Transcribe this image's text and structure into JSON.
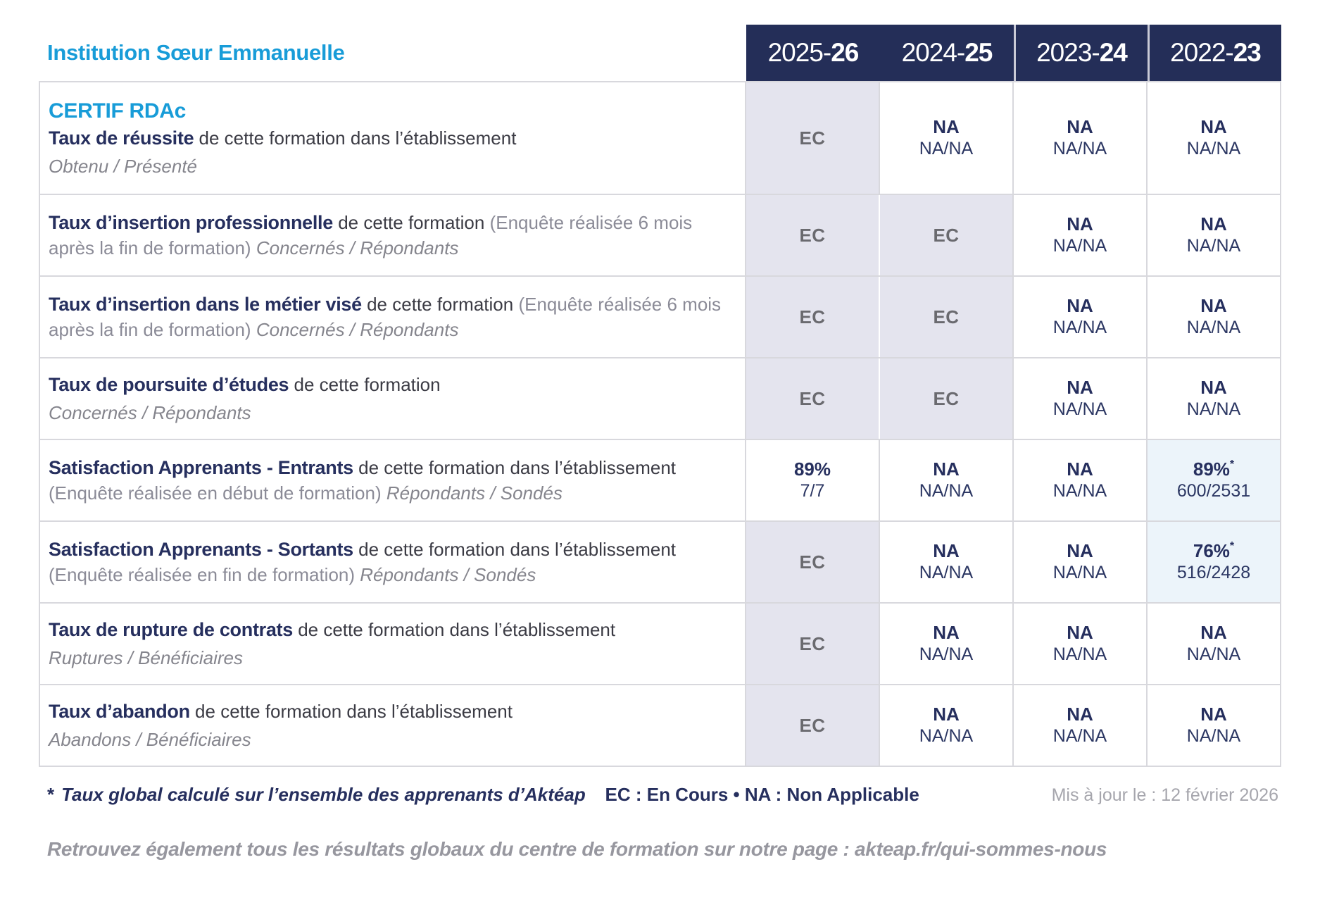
{
  "header": {
    "institution": "Institution Sœur Emmanuelle",
    "program": "CERTIF RDAc"
  },
  "columns": [
    {
      "pre": "2025-",
      "bold": "26"
    },
    {
      "pre": "2024-",
      "bold": "25"
    },
    {
      "pre": "2023-",
      "bold": "24"
    },
    {
      "pre": "2022-",
      "bold": "23"
    }
  ],
  "rows": [
    {
      "title": "Taux de réussite",
      "desc": "de cette formation dans l’établissement",
      "paren": "",
      "subtitle": "Obtenu / Présenté",
      "cells": [
        {
          "bg": "lav",
          "main": "EC"
        },
        {
          "bg": "white",
          "main": "NA",
          "sub": "NA/NA"
        },
        {
          "bg": "white",
          "main": "NA",
          "sub": "NA/NA"
        },
        {
          "bg": "white",
          "main": "NA",
          "sub": "NA/NA"
        }
      ]
    },
    {
      "title": "Taux d’insertion professionnelle",
      "desc": "de cette formation",
      "paren": "(Enquête réalisée 6 mois après la fin de formation)",
      "subtitle": "Concernés / Répondants",
      "cells": [
        {
          "bg": "lav",
          "main": "EC"
        },
        {
          "bg": "lav",
          "main": "EC"
        },
        {
          "bg": "white",
          "main": "NA",
          "sub": "NA/NA"
        },
        {
          "bg": "white",
          "main": "NA",
          "sub": "NA/NA"
        }
      ]
    },
    {
      "title": "Taux d’insertion dans le métier visé",
      "desc": "de cette formation",
      "paren": "(Enquête réalisée 6 mois après la fin de formation)",
      "subtitle": "Concernés / Répondants",
      "cells": [
        {
          "bg": "lav",
          "main": "EC"
        },
        {
          "bg": "lav",
          "main": "EC"
        },
        {
          "bg": "white",
          "main": "NA",
          "sub": "NA/NA"
        },
        {
          "bg": "white",
          "main": "NA",
          "sub": "NA/NA"
        }
      ]
    },
    {
      "title": "Taux de poursuite d’études",
      "desc": "de cette formation",
      "paren": "",
      "subtitle": "Concernés / Répondants",
      "cells": [
        {
          "bg": "lav",
          "main": "EC"
        },
        {
          "bg": "lav",
          "main": "EC"
        },
        {
          "bg": "white",
          "main": "NA",
          "sub": "NA/NA"
        },
        {
          "bg": "white",
          "main": "NA",
          "sub": "NA/NA"
        }
      ]
    },
    {
      "title": "Satisfaction Apprenants - Entrants",
      "desc": "de cette formation dans l’établissement",
      "paren": "(Enquête réalisée en début de formation)",
      "subtitle": "Répondants / Sondés",
      "cells": [
        {
          "bg": "white",
          "main": "89%",
          "sub": "7/7"
        },
        {
          "bg": "white",
          "main": "NA",
          "sub": "NA/NA"
        },
        {
          "bg": "white",
          "main": "NA",
          "sub": "NA/NA"
        },
        {
          "bg": "blue",
          "main": "89%",
          "star": true,
          "sub": "600/2531"
        }
      ]
    },
    {
      "title": "Satisfaction Apprenants - Sortants",
      "desc": "de cette formation dans l’établissement",
      "paren": "(Enquête réalisée en fin de formation)",
      "subtitle": "Répondants / Sondés",
      "cells": [
        {
          "bg": "lav",
          "main": "EC"
        },
        {
          "bg": "white",
          "main": "NA",
          "sub": "NA/NA"
        },
        {
          "bg": "white",
          "main": "NA",
          "sub": "NA/NA"
        },
        {
          "bg": "blue",
          "main": "76%",
          "star": true,
          "sub": "516/2428"
        }
      ]
    },
    {
      "title": "Taux de rupture de contrats",
      "desc": "de cette formation dans l’établissement",
      "paren": "",
      "subtitle": "Ruptures / Bénéficiaires",
      "cells": [
        {
          "bg": "lav",
          "main": "EC"
        },
        {
          "bg": "white",
          "main": "NA",
          "sub": "NA/NA"
        },
        {
          "bg": "white",
          "main": "NA",
          "sub": "NA/NA"
        },
        {
          "bg": "white",
          "main": "NA",
          "sub": "NA/NA"
        }
      ]
    },
    {
      "title": "Taux d’abandon",
      "desc": "de cette formation dans l’établissement",
      "paren": "",
      "subtitle": "Abandons / Bénéficiaires",
      "cells": [
        {
          "bg": "lav",
          "main": "EC"
        },
        {
          "bg": "white",
          "main": "NA",
          "sub": "NA/NA"
        },
        {
          "bg": "white",
          "main": "NA",
          "sub": "NA/NA"
        },
        {
          "bg": "white",
          "main": "NA",
          "sub": "NA/NA"
        }
      ]
    }
  ],
  "footer": {
    "note_star": "*",
    "note": "Taux global calculé sur l’ensemble des apprenants d’Aktéap",
    "legend": "EC : En Cours   •   NA : Non Applicable",
    "updated": "Mis à jour le : 12 février 2026",
    "bottom": "Retrouvez également tous les résultats globaux du centre de formation sur notre page : akteap.fr/qui-sommes-nous"
  },
  "colors": {
    "accent_blue": "#189cd8",
    "navy": "#242e58",
    "ec_cell_bg": "#e4e4ee",
    "highlight_cell_bg": "#ecf4fa",
    "grid_border": "#d8d8dd"
  }
}
